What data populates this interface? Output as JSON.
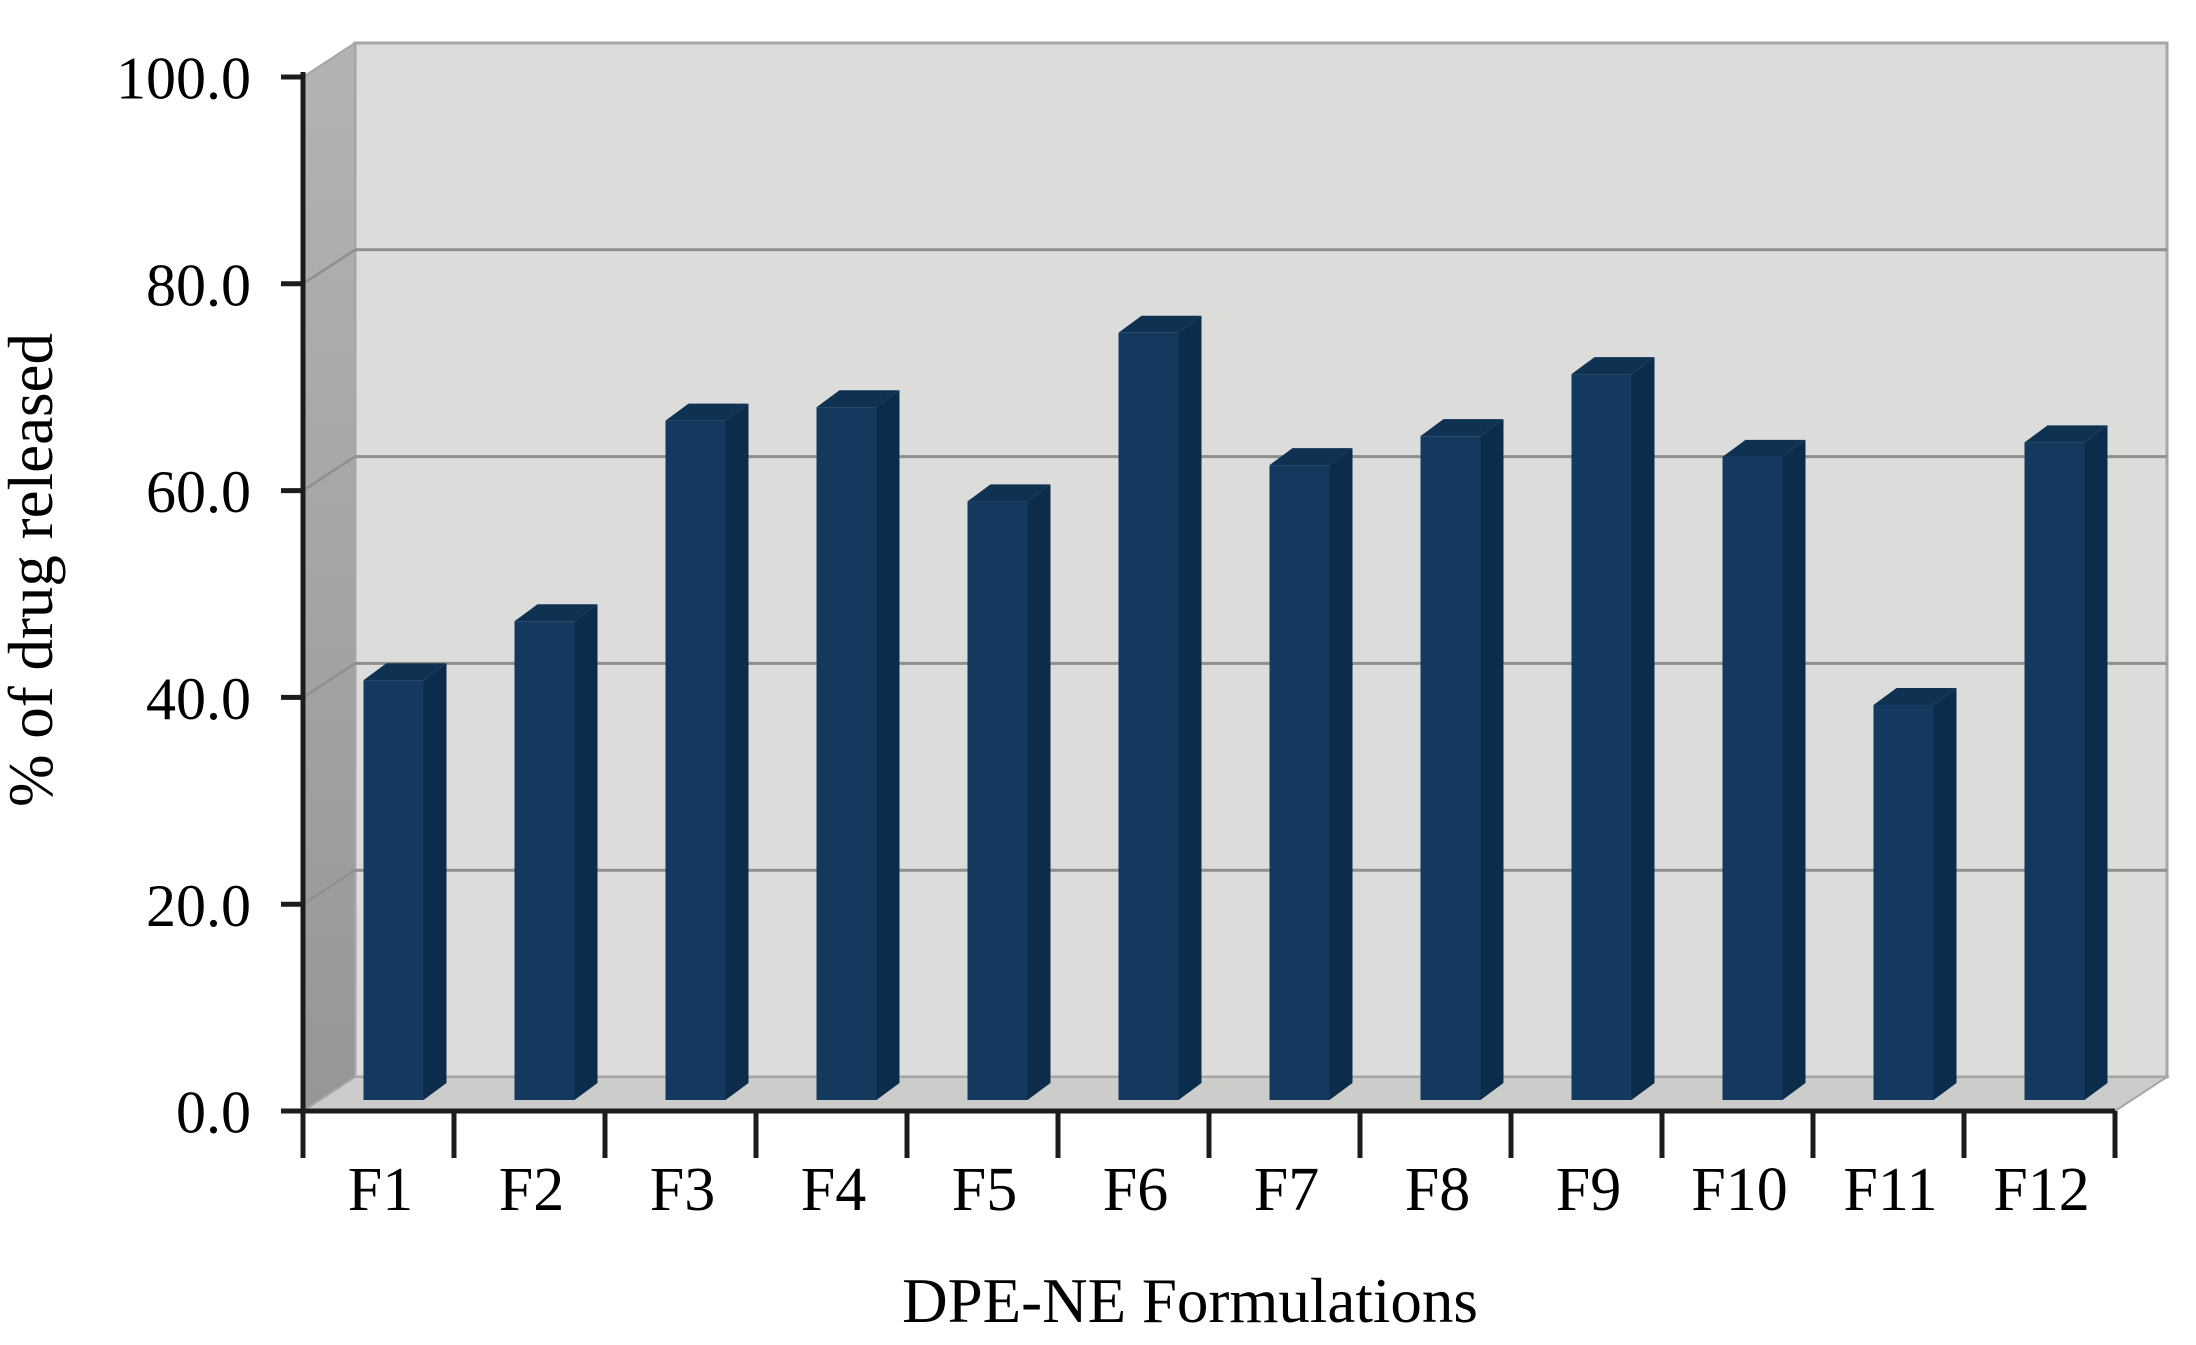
{
  "figure": {
    "description": "3D clustered column chart of percent drug released for twelve DPE-NE formulations",
    "background": "#ffffff"
  },
  "chart_data": {
    "type": "bar",
    "style": "pseudo-3d-column",
    "title": "",
    "xlabel": "DPE-NE Formulations",
    "ylabel": "% of drug released",
    "categories": [
      "F1",
      "F2",
      "F3",
      "F4",
      "F5",
      "F6",
      "F7",
      "F8",
      "F9",
      "F10",
      "F11",
      "F12"
    ],
    "values": [
      40.6,
      46.3,
      65.7,
      67.0,
      57.9,
      74.2,
      61.4,
      64.2,
      70.2,
      62.2,
      38.2,
      63.6
    ],
    "ylim": [
      0,
      100
    ],
    "ytick_values": [
      0,
      20,
      40,
      60,
      80,
      100
    ],
    "ytick_labels": [
      "0.0",
      "20.0",
      "40.0",
      "60.0",
      "80.0",
      "100.0"
    ],
    "grid": true,
    "legend": false,
    "colors": {
      "bar_front": "#14395e",
      "bar_top": "#0f3152",
      "bar_side": "#0b2c4b",
      "wall_back": "#dcdcda",
      "wall_side": "#a1a19f",
      "wall_side_light": "#b3b3b1",
      "floor": "#cccccb",
      "wall_edge": "#a6a6a4",
      "gridline": "#8f8f8f",
      "axis": "#1c1c1c",
      "text": "#000000",
      "background": "#ffffff"
    }
  }
}
